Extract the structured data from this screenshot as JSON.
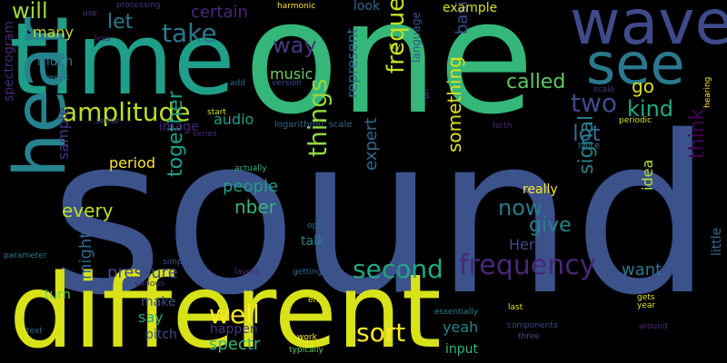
{
  "words": [
    {
      "text": "sound",
      "color": "#3b528b"
    },
    {
      "text": "different",
      "color": "#d8e219"
    },
    {
      "text": "one",
      "color": "#35b779"
    },
    {
      "text": "time",
      "color": "#1f9e89"
    },
    {
      "text": "wave",
      "color": "#3e4a89"
    },
    {
      "text": "hear",
      "color": "#25838e"
    },
    {
      "text": "see",
      "color": "#2a788e"
    },
    {
      "text": "amplitude",
      "color": "#bddf26"
    },
    {
      "text": "frequency",
      "color": "#482878"
    },
    {
      "text": "second",
      "color": "#22a884"
    },
    {
      "text": "take",
      "color": "#2a788e"
    },
    {
      "text": "two",
      "color": "#3e4a89"
    },
    {
      "text": "frequencies",
      "color": "#c8e020"
    },
    {
      "text": "things",
      "color": "#90d743"
    },
    {
      "text": "lot",
      "color": "#31688e"
    },
    {
      "text": "kind",
      "color": "#22a884"
    },
    {
      "text": "now",
      "color": "#2a788e"
    },
    {
      "text": "well",
      "color": "#fde725"
    },
    {
      "text": "sort",
      "color": "#fde725"
    },
    {
      "text": "will",
      "color": "#a0da39"
    },
    {
      "text": "let",
      "color": "#2a788e"
    },
    {
      "text": "way",
      "color": "#443983"
    },
    {
      "text": "called",
      "color": "#5ec962"
    },
    {
      "text": "go",
      "color": "#d8e219"
    },
    {
      "text": "together",
      "color": "#1f9e89"
    },
    {
      "text": "signal",
      "color": "#25838e"
    },
    {
      "text": "give",
      "color": "#26828e"
    },
    {
      "text": "think",
      "color": "#440154"
    },
    {
      "text": "something",
      "color": "#dde318"
    },
    {
      "text": "expert",
      "color": "#31688e"
    },
    {
      "text": "basically",
      "color": "#3e4a89"
    },
    {
      "text": "spectrogram",
      "color": "#482878"
    },
    {
      "text": "every",
      "color": "#bddf26"
    },
    {
      "text": "nber",
      "color": "#35b779"
    },
    {
      "text": "people",
      "color": "#1f9e89"
    },
    {
      "text": "might",
      "color": "#31688e"
    },
    {
      "text": "pressure",
      "color": "#3e4a89"
    },
    {
      "text": "spectr",
      "color": "#37b878"
    },
    {
      "text": "certain",
      "color": "#482878"
    },
    {
      "text": "music",
      "color": "#6ece58"
    },
    {
      "text": "sample",
      "color": "#443983"
    },
    {
      "text": "want",
      "color": "#2a788e"
    },
    {
      "text": "audio",
      "color": "#1f9e89"
    },
    {
      "text": "period",
      "color": "#fde725"
    },
    {
      "text": "many",
      "color": "#bddf26"
    },
    {
      "text": "example",
      "color": "#d8e219"
    },
    {
      "text": "represent",
      "color": "#31688e"
    },
    {
      "text": "Herz",
      "color": "#3e4a89"
    },
    {
      "text": "yeah",
      "color": "#26828e"
    },
    {
      "text": "idea",
      "color": "#b5de2b"
    },
    {
      "text": "really",
      "color": "#fde725"
    },
    {
      "text": "say",
      "color": "#22a884"
    },
    {
      "text": "happen",
      "color": "#443983"
    },
    {
      "text": "look",
      "color": "#31688e"
    },
    {
      "text": "little",
      "color": "#31688e"
    },
    {
      "text": "much",
      "color": "#2a788e"
    },
    {
      "text": "turn",
      "color": "#6ece58"
    },
    {
      "text": "input",
      "color": "#35b779"
    },
    {
      "text": "pitch",
      "color": "#3b528b"
    },
    {
      "text": "talk",
      "color": "#26828e"
    },
    {
      "text": "image",
      "color": "#482878"
    },
    {
      "text": "logarithmic scale",
      "color": "#31688e"
    },
    {
      "text": "make",
      "color": "#3b528b"
    },
    {
      "text": "language",
      "color": "#3b528b"
    },
    {
      "text": "layers",
      "color": "#482878"
    },
    {
      "text": "getting",
      "color": "#31688e"
    },
    {
      "text": "parameter",
      "color": "#2a788e"
    },
    {
      "text": "harmonic",
      "color": "#fde725"
    },
    {
      "text": "processing",
      "color": "#443983"
    },
    {
      "text": "use",
      "color": "#443983"
    },
    {
      "text": "less",
      "color": "#482878"
    },
    {
      "text": "week",
      "color": "#2a788e"
    },
    {
      "text": "add",
      "color": "#31688e"
    },
    {
      "text": "version",
      "color": "#3e4a89"
    },
    {
      "text": "try",
      "color": "#d8e219"
    },
    {
      "text": "on",
      "color": "#3b528b"
    },
    {
      "text": "scale",
      "color": "#443983"
    },
    {
      "text": "periodic",
      "color": "#d8e219"
    },
    {
      "text": "hearing",
      "color": "#fde725"
    },
    {
      "text": "twice",
      "color": "#2a788e"
    },
    {
      "text": "forth",
      "color": "#482878"
    },
    {
      "text": "start",
      "color": "#d8e219"
    },
    {
      "text": "series",
      "color": "#482878"
    },
    {
      "text": "sense",
      "color": "#3e4a89"
    },
    {
      "text": "actually",
      "color": "#35b779"
    },
    {
      "text": "open",
      "color": "#31688e"
    },
    {
      "text": "simple",
      "color": "#3b528b"
    },
    {
      "text": "various",
      "color": "#482878"
    },
    {
      "text": "text",
      "color": "#31688e"
    },
    {
      "text": "end",
      "color": "#dde318"
    },
    {
      "text": "work",
      "color": "#fde725"
    },
    {
      "text": "typically",
      "color": "#5ec962"
    },
    {
      "text": "another",
      "color": "#31688e"
    },
    {
      "text": "essentially",
      "color": "#26828e"
    },
    {
      "text": "last",
      "color": "#dde318"
    },
    {
      "text": "components",
      "color": "#3e4a89"
    },
    {
      "text": "three",
      "color": "#3b528b"
    },
    {
      "text": "gets",
      "color": "#d8e219"
    },
    {
      "text": "year",
      "color": "#dde318"
    },
    {
      "text": "around",
      "color": "#482878"
    }
  ]
}
